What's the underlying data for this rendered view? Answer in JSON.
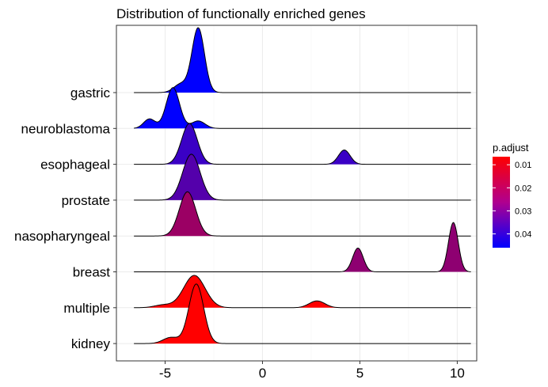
{
  "chart_data": {
    "type": "ridgeline",
    "title": "Distribution of functionally enriched genes",
    "xlabel": "",
    "ylabel": "",
    "xlim": [
      -7.5,
      11
    ],
    "x_ticks": [
      -5,
      0,
      5,
      10
    ],
    "x_tick_labels": [
      "-5",
      "0",
      "5",
      "10"
    ],
    "grid": true,
    "legend": {
      "title": "p.adjust",
      "position": "right",
      "ticks": [
        0.01,
        0.02,
        0.03,
        0.04
      ],
      "tick_labels": [
        "0.01",
        "0.02",
        "0.03",
        "0.04"
      ],
      "range": [
        0.0065,
        0.046
      ],
      "low_color": "#FF0000",
      "high_color": "#0000FF"
    },
    "series": [
      {
        "name": "gastric",
        "p_adjust": 0.046,
        "x_range": [
          -6.6,
          10.7
        ],
        "peaks": [
          {
            "mu": -3.3,
            "sigma": 0.32,
            "h": 1.9
          },
          {
            "mu": -4.2,
            "sigma": 0.35,
            "h": 0.25
          }
        ]
      },
      {
        "name": "neuroblastoma",
        "p_adjust": 0.046,
        "x_range": [
          -6.6,
          10.7
        ],
        "peaks": [
          {
            "mu": -4.6,
            "sigma": 0.34,
            "h": 1.2
          },
          {
            "mu": -5.8,
            "sigma": 0.3,
            "h": 0.28
          },
          {
            "mu": -3.3,
            "sigma": 0.35,
            "h": 0.22
          }
        ]
      },
      {
        "name": "esophageal",
        "p_adjust": 0.037,
        "x_range": [
          -6.6,
          10.7
        ],
        "peaks": [
          {
            "mu": -3.75,
            "sigma": 0.4,
            "h": 1.2
          },
          {
            "mu": 4.2,
            "sigma": 0.3,
            "h": 0.42
          }
        ]
      },
      {
        "name": "prostate",
        "p_adjust": 0.033,
        "x_range": [
          -6.6,
          10.7
        ],
        "peaks": [
          {
            "mu": -3.65,
            "sigma": 0.45,
            "h": 1.35
          }
        ]
      },
      {
        "name": "nasopharyngeal",
        "p_adjust": 0.022,
        "x_range": [
          -6.6,
          10.7
        ],
        "peaks": [
          {
            "mu": -3.85,
            "sigma": 0.42,
            "h": 1.3
          }
        ]
      },
      {
        "name": "breast",
        "p_adjust": 0.024,
        "x_range": [
          -6.6,
          10.7
        ],
        "peaks": [
          {
            "mu": 4.9,
            "sigma": 0.27,
            "h": 0.7
          },
          {
            "mu": 9.8,
            "sigma": 0.25,
            "h": 1.45
          }
        ]
      },
      {
        "name": "multiple",
        "p_adjust": 0.0065,
        "x_range": [
          -6.6,
          10.7
        ],
        "peaks": [
          {
            "mu": -3.5,
            "sigma": 0.55,
            "h": 0.95
          },
          {
            "mu": -5.1,
            "sigma": 0.45,
            "h": 0.08
          },
          {
            "mu": 2.8,
            "sigma": 0.4,
            "h": 0.2
          }
        ]
      },
      {
        "name": "kidney",
        "p_adjust": 0.0065,
        "x_range": [
          -6.6,
          10.7
        ],
        "peaks": [
          {
            "mu": -3.4,
            "sigma": 0.38,
            "h": 1.75
          },
          {
            "mu": -4.7,
            "sigma": 0.4,
            "h": 0.18
          }
        ]
      }
    ]
  }
}
